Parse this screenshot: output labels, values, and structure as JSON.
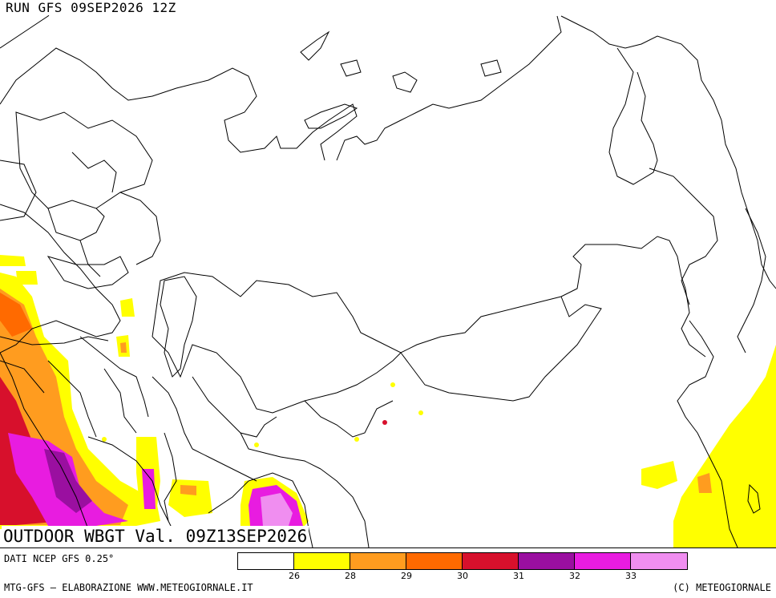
{
  "header": {
    "run": "RUN GFS 09SEP2026 12Z"
  },
  "map": {
    "title": "OUTDOOR WBGT Val. 09Z13SEP2026",
    "background": "#ffffff",
    "border_color": "#000000"
  },
  "footer": {
    "source": "DATI NCEP GFS 0.25°",
    "credit_left": "MTG-GFS — ELABORAZIONE WWW.METEOGIORNALE.IT",
    "credit_right": "(C) METEOGIORNALE"
  },
  "legend": {
    "colors": [
      "#ffffff",
      "#ffff00",
      "#ff9c1f",
      "#ff6a00",
      "#d7102c",
      "#9a0fa0",
      "#e81ce0",
      "#f08ef0"
    ],
    "ticks": [
      "26",
      "28",
      "29",
      "30",
      "31",
      "32",
      "33"
    ]
  }
}
